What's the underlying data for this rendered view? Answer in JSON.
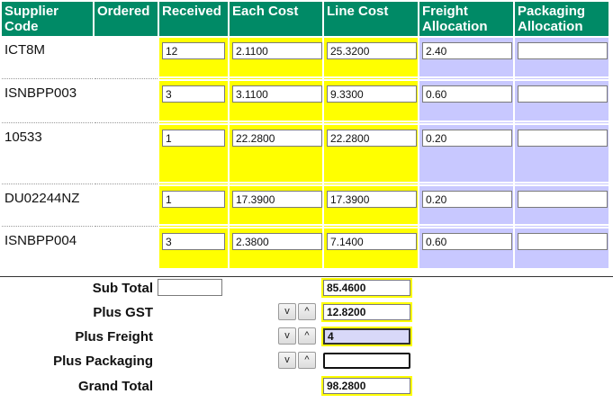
{
  "headers": {
    "supplier_code": "Supplier Code",
    "ordered": "Ordered",
    "received": "Received",
    "each_cost": "Each Cost",
    "line_cost": "Line Cost",
    "freight_allocation": "Freight Allocation",
    "packaging_allocation": "Packaging Allocation"
  },
  "rows": [
    {
      "code": "ICT8M",
      "ordered": "",
      "received": "12",
      "each_cost": "2.1100",
      "line_cost": "25.3200",
      "freight": "2.40",
      "packaging": ""
    },
    {
      "code": "ISNBPP003",
      "ordered": "",
      "received": "3",
      "each_cost": "3.1100",
      "line_cost": "9.3300",
      "freight": "0.60",
      "packaging": ""
    },
    {
      "code": "10533",
      "ordered": "",
      "received": "1",
      "each_cost": "22.2800",
      "line_cost": "22.2800",
      "freight": "0.20",
      "packaging": ""
    },
    {
      "code": "DU02244NZ",
      "ordered": "",
      "received": "1",
      "each_cost": "17.3900",
      "line_cost": "17.3900",
      "freight": "0.20",
      "packaging": ""
    },
    {
      "code": "ISNBPP004",
      "ordered": "",
      "received": "3",
      "each_cost": "2.3800",
      "line_cost": "7.1400",
      "freight": "0.60",
      "packaging": ""
    }
  ],
  "totals": {
    "sub_total_label": "Sub Total",
    "sub_total_value": "85.4600",
    "sub_total_received": "",
    "plus_gst_label": "Plus GST",
    "plus_gst_value": "12.8200",
    "plus_freight_label": "Plus Freight",
    "plus_freight_value": "4",
    "plus_packaging_label": "Plus Packaging",
    "plus_packaging_value": "",
    "grand_total_label": "Grand Total",
    "grand_total_value": "98.2800"
  },
  "stepper": {
    "down": "v",
    "up": "^"
  },
  "colors": {
    "header_bg": "#008a66",
    "yellow_cols": "#ffff00",
    "lavender_cols": "#c8c8ff",
    "active_input_bg": "#d8d8f8"
  }
}
